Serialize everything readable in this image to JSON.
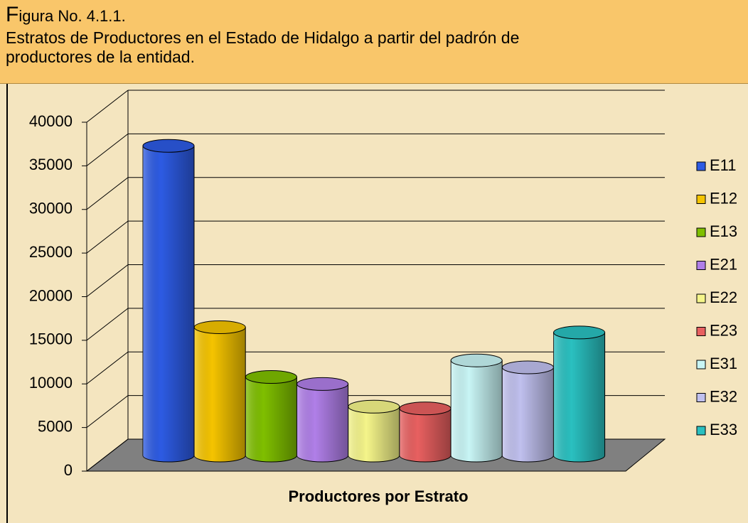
{
  "header": {
    "figure": "Figura No. 4.1.1.",
    "subtitle": "Estratos de Productores en el Estado de Hidalgo a partir del padrón de productores de la entidad."
  },
  "chart_data": {
    "type": "bar3d",
    "x_label": "Productores por Estrato",
    "ylim": [
      0,
      40000
    ],
    "yticks": [
      0,
      5000,
      10000,
      15000,
      20000,
      25000,
      30000,
      35000,
      40000
    ],
    "grid": true,
    "legend": "right",
    "series": [
      {
        "name": "E11",
        "color": "#2d5be3",
        "values": [
          35500
        ]
      },
      {
        "name": "E12",
        "color": "#f5c400",
        "values": [
          14700
        ]
      },
      {
        "name": "E13",
        "color": "#7fbf00",
        "values": [
          9000
        ]
      },
      {
        "name": "E21",
        "color": "#b07fe8",
        "values": [
          8200
        ]
      },
      {
        "name": "E22",
        "color": "#f5f58a",
        "values": [
          5600
        ]
      },
      {
        "name": "E23",
        "color": "#e86060",
        "values": [
          5400
        ]
      },
      {
        "name": "E31",
        "color": "#c8f5f5",
        "values": [
          10900
        ]
      },
      {
        "name": "E32",
        "color": "#c0c0ee",
        "values": [
          10100
        ]
      },
      {
        "name": "E33",
        "color": "#2ac0c0",
        "values": [
          14100
        ]
      }
    ]
  }
}
